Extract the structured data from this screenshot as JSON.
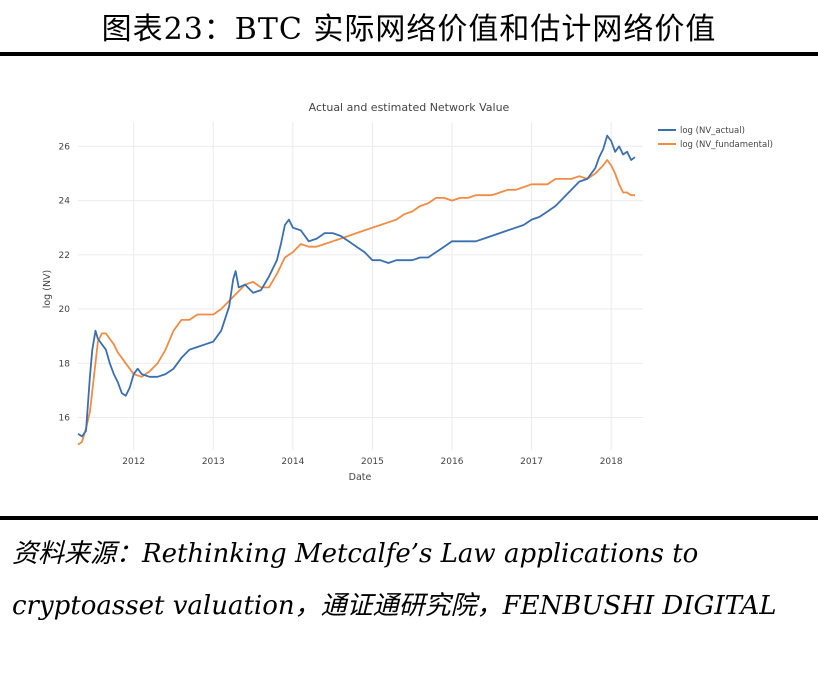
{
  "figure": {
    "heading": "图表23：BTC 实际网络价值和估计网络价值",
    "source": "资料来源：Rethinking Metcalfe’s Law applications to cryptoasset valuation，通证通研究院，FENBUSHI DIGITAL"
  },
  "chart_data": {
    "type": "line",
    "title": "Actual and estimated Network Value",
    "xlabel": "Date",
    "ylabel": "log (NV)",
    "xlim": [
      2011.3,
      2018.4
    ],
    "ylim": [
      14.8,
      26.9
    ],
    "x_ticks": [
      "2012",
      "2013",
      "2014",
      "2015",
      "2016",
      "2017",
      "2018"
    ],
    "y_ticks": [
      "16",
      "18",
      "20",
      "22",
      "24",
      "26"
    ],
    "grid": true,
    "legend_position": "top-right",
    "colors": {
      "actual": "#3b6fb0",
      "fundamental": "#f08c45"
    },
    "series": [
      {
        "name": "log (NV_actual)",
        "points": [
          [
            2011.3,
            15.4
          ],
          [
            2011.35,
            15.3
          ],
          [
            2011.4,
            15.5
          ],
          [
            2011.45,
            17.5
          ],
          [
            2011.48,
            18.5
          ],
          [
            2011.52,
            19.2
          ],
          [
            2011.55,
            18.9
          ],
          [
            2011.6,
            18.7
          ],
          [
            2011.65,
            18.5
          ],
          [
            2011.7,
            18.0
          ],
          [
            2011.75,
            17.6
          ],
          [
            2011.8,
            17.3
          ],
          [
            2011.85,
            16.9
          ],
          [
            2011.9,
            16.8
          ],
          [
            2011.95,
            17.1
          ],
          [
            2012.0,
            17.6
          ],
          [
            2012.05,
            17.8
          ],
          [
            2012.1,
            17.6
          ],
          [
            2012.2,
            17.5
          ],
          [
            2012.3,
            17.5
          ],
          [
            2012.4,
            17.6
          ],
          [
            2012.5,
            17.8
          ],
          [
            2012.6,
            18.2
          ],
          [
            2012.7,
            18.5
          ],
          [
            2012.8,
            18.6
          ],
          [
            2012.9,
            18.7
          ],
          [
            2013.0,
            18.8
          ],
          [
            2013.1,
            19.2
          ],
          [
            2013.2,
            20.1
          ],
          [
            2013.25,
            21.1
          ],
          [
            2013.28,
            21.4
          ],
          [
            2013.32,
            20.8
          ],
          [
            2013.4,
            20.9
          ],
          [
            2013.5,
            20.6
          ],
          [
            2013.6,
            20.7
          ],
          [
            2013.7,
            21.2
          ],
          [
            2013.8,
            21.8
          ],
          [
            2013.85,
            22.4
          ],
          [
            2013.9,
            23.1
          ],
          [
            2013.95,
            23.3
          ],
          [
            2014.0,
            23.0
          ],
          [
            2014.1,
            22.9
          ],
          [
            2014.2,
            22.5
          ],
          [
            2014.3,
            22.6
          ],
          [
            2014.4,
            22.8
          ],
          [
            2014.5,
            22.8
          ],
          [
            2014.6,
            22.7
          ],
          [
            2014.7,
            22.5
          ],
          [
            2014.8,
            22.3
          ],
          [
            2014.9,
            22.1
          ],
          [
            2015.0,
            21.8
          ],
          [
            2015.1,
            21.8
          ],
          [
            2015.2,
            21.7
          ],
          [
            2015.3,
            21.8
          ],
          [
            2015.4,
            21.8
          ],
          [
            2015.5,
            21.8
          ],
          [
            2015.6,
            21.9
          ],
          [
            2015.7,
            21.9
          ],
          [
            2015.8,
            22.1
          ],
          [
            2015.9,
            22.3
          ],
          [
            2016.0,
            22.5
          ],
          [
            2016.1,
            22.5
          ],
          [
            2016.2,
            22.5
          ],
          [
            2016.3,
            22.5
          ],
          [
            2016.4,
            22.6
          ],
          [
            2016.5,
            22.7
          ],
          [
            2016.6,
            22.8
          ],
          [
            2016.7,
            22.9
          ],
          [
            2016.8,
            23.0
          ],
          [
            2016.9,
            23.1
          ],
          [
            2017.0,
            23.3
          ],
          [
            2017.1,
            23.4
          ],
          [
            2017.2,
            23.6
          ],
          [
            2017.3,
            23.8
          ],
          [
            2017.4,
            24.1
          ],
          [
            2017.5,
            24.4
          ],
          [
            2017.6,
            24.7
          ],
          [
            2017.7,
            24.8
          ],
          [
            2017.8,
            25.2
          ],
          [
            2017.85,
            25.6
          ],
          [
            2017.9,
            25.9
          ],
          [
            2017.95,
            26.4
          ],
          [
            2018.0,
            26.2
          ],
          [
            2018.05,
            25.8
          ],
          [
            2018.1,
            26.0
          ],
          [
            2018.15,
            25.7
          ],
          [
            2018.2,
            25.8
          ],
          [
            2018.25,
            25.5
          ],
          [
            2018.3,
            25.6
          ]
        ]
      },
      {
        "name": "log (NV_fundamental)",
        "points": [
          [
            2011.3,
            15.0
          ],
          [
            2011.35,
            15.1
          ],
          [
            2011.4,
            15.6
          ],
          [
            2011.45,
            16.2
          ],
          [
            2011.5,
            17.5
          ],
          [
            2011.55,
            18.8
          ],
          [
            2011.6,
            19.1
          ],
          [
            2011.65,
            19.1
          ],
          [
            2011.7,
            18.9
          ],
          [
            2011.75,
            18.7
          ],
          [
            2011.8,
            18.4
          ],
          [
            2011.85,
            18.2
          ],
          [
            2011.9,
            18.0
          ],
          [
            2011.95,
            17.8
          ],
          [
            2012.0,
            17.6
          ],
          [
            2012.1,
            17.5
          ],
          [
            2012.2,
            17.7
          ],
          [
            2012.3,
            18.0
          ],
          [
            2012.4,
            18.5
          ],
          [
            2012.5,
            19.2
          ],
          [
            2012.6,
            19.6
          ],
          [
            2012.7,
            19.6
          ],
          [
            2012.8,
            19.8
          ],
          [
            2012.9,
            19.8
          ],
          [
            2013.0,
            19.8
          ],
          [
            2013.1,
            20.0
          ],
          [
            2013.2,
            20.3
          ],
          [
            2013.3,
            20.6
          ],
          [
            2013.4,
            20.9
          ],
          [
            2013.5,
            21.0
          ],
          [
            2013.6,
            20.8
          ],
          [
            2013.7,
            20.8
          ],
          [
            2013.8,
            21.3
          ],
          [
            2013.9,
            21.9
          ],
          [
            2014.0,
            22.1
          ],
          [
            2014.1,
            22.4
          ],
          [
            2014.2,
            22.3
          ],
          [
            2014.3,
            22.3
          ],
          [
            2014.4,
            22.4
          ],
          [
            2014.5,
            22.5
          ],
          [
            2014.6,
            22.6
          ],
          [
            2014.7,
            22.7
          ],
          [
            2014.8,
            22.8
          ],
          [
            2014.9,
            22.9
          ],
          [
            2015.0,
            23.0
          ],
          [
            2015.1,
            23.1
          ],
          [
            2015.2,
            23.2
          ],
          [
            2015.3,
            23.3
          ],
          [
            2015.4,
            23.5
          ],
          [
            2015.5,
            23.6
          ],
          [
            2015.6,
            23.8
          ],
          [
            2015.7,
            23.9
          ],
          [
            2015.8,
            24.1
          ],
          [
            2015.9,
            24.1
          ],
          [
            2016.0,
            24.0
          ],
          [
            2016.1,
            24.1
          ],
          [
            2016.2,
            24.1
          ],
          [
            2016.3,
            24.2
          ],
          [
            2016.4,
            24.2
          ],
          [
            2016.5,
            24.2
          ],
          [
            2016.6,
            24.3
          ],
          [
            2016.7,
            24.4
          ],
          [
            2016.8,
            24.4
          ],
          [
            2016.9,
            24.5
          ],
          [
            2017.0,
            24.6
          ],
          [
            2017.1,
            24.6
          ],
          [
            2017.2,
            24.6
          ],
          [
            2017.3,
            24.8
          ],
          [
            2017.4,
            24.8
          ],
          [
            2017.5,
            24.8
          ],
          [
            2017.6,
            24.9
          ],
          [
            2017.7,
            24.8
          ],
          [
            2017.8,
            25.0
          ],
          [
            2017.9,
            25.3
          ],
          [
            2017.95,
            25.5
          ],
          [
            2018.0,
            25.3
          ],
          [
            2018.05,
            25.0
          ],
          [
            2018.1,
            24.6
          ],
          [
            2018.15,
            24.3
          ],
          [
            2018.2,
            24.3
          ],
          [
            2018.25,
            24.2
          ],
          [
            2018.3,
            24.2
          ]
        ]
      }
    ]
  }
}
